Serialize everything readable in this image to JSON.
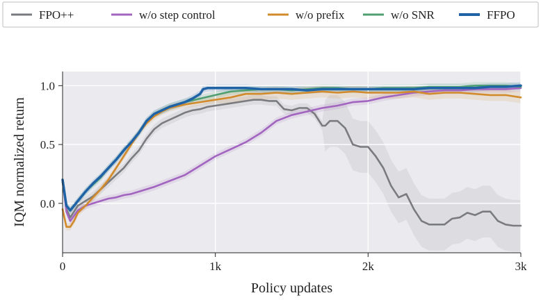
{
  "chart_data": {
    "type": "line",
    "title": "",
    "xlabel": "Policy updates",
    "ylabel": "IQM normalized return",
    "xlim": [
      0,
      3000
    ],
    "ylim": [
      -0.42,
      1.12
    ],
    "xticks": [
      0,
      1000,
      2000,
      3000
    ],
    "xtick_labels": [
      "0",
      "1k",
      "2k",
      "3k"
    ],
    "yticks": [
      0.0,
      0.5,
      1.0
    ],
    "ytick_labels": [
      "0.0",
      "0.5",
      "1.0"
    ],
    "grid": true,
    "legend_placement": "top, above plot, single row",
    "series": [
      {
        "name": "FPO++",
        "color": "#7a7b7f",
        "x": [
          0,
          25,
          50,
          100,
          150,
          200,
          250,
          300,
          350,
          400,
          450,
          500,
          550,
          600,
          650,
          700,
          750,
          800,
          850,
          900,
          950,
          1000,
          1100,
          1200,
          1250,
          1300,
          1350,
          1400,
          1450,
          1500,
          1550,
          1600,
          1650,
          1700,
          1720,
          1750,
          1800,
          1850,
          1900,
          1950,
          1970,
          2000,
          2050,
          2100,
          2150,
          2200,
          2250,
          2300,
          2350,
          2400,
          2450,
          2500,
          2550,
          2600,
          2650,
          2700,
          2750,
          2800,
          2850,
          2900,
          2950,
          3000
        ],
        "y": [
          0.18,
          -0.05,
          -0.12,
          -0.02,
          0.02,
          0.06,
          0.12,
          0.18,
          0.24,
          0.3,
          0.38,
          0.45,
          0.55,
          0.63,
          0.68,
          0.71,
          0.74,
          0.77,
          0.79,
          0.8,
          0.82,
          0.83,
          0.85,
          0.87,
          0.88,
          0.88,
          0.87,
          0.87,
          0.8,
          0.79,
          0.81,
          0.81,
          0.76,
          0.66,
          0.66,
          0.7,
          0.7,
          0.64,
          0.5,
          0.48,
          0.48,
          0.48,
          0.4,
          0.3,
          0.15,
          0.05,
          0.08,
          -0.05,
          -0.15,
          -0.18,
          -0.18,
          -0.18,
          -0.13,
          -0.12,
          -0.08,
          -0.1,
          -0.07,
          -0.07,
          -0.15,
          -0.18,
          -0.19,
          -0.19
        ]
      },
      {
        "name": "w/o step control",
        "color": "#a265bf",
        "x": [
          0,
          25,
          50,
          100,
          150,
          200,
          250,
          300,
          350,
          400,
          450,
          500,
          550,
          600,
          700,
          800,
          900,
          1000,
          1100,
          1200,
          1300,
          1400,
          1500,
          1600,
          1700,
          1800,
          1900,
          2000,
          2100,
          2200,
          2300,
          2400,
          2500,
          2600,
          2700,
          2800,
          2900,
          3000
        ],
        "y": [
          0.2,
          -0.07,
          -0.15,
          -0.06,
          -0.02,
          0.0,
          0.02,
          0.04,
          0.05,
          0.07,
          0.08,
          0.1,
          0.12,
          0.14,
          0.19,
          0.24,
          0.32,
          0.4,
          0.46,
          0.52,
          0.6,
          0.7,
          0.75,
          0.78,
          0.81,
          0.83,
          0.86,
          0.87,
          0.9,
          0.92,
          0.94,
          0.95,
          0.96,
          0.96,
          0.97,
          0.97,
          0.97,
          0.98
        ]
      },
      {
        "name": "w/o prefix",
        "color": "#d18a2c",
        "x": [
          0,
          25,
          50,
          75,
          100,
          150,
          200,
          250,
          300,
          350,
          400,
          450,
          500,
          550,
          600,
          650,
          700,
          800,
          900,
          1000,
          1100,
          1200,
          1300,
          1400,
          1500,
          1600,
          1700,
          1800,
          1900,
          2000,
          2100,
          2200,
          2300,
          2400,
          2500,
          2600,
          2700,
          2800,
          2900,
          3000
        ],
        "y": [
          -0.05,
          -0.2,
          -0.2,
          -0.15,
          -0.08,
          -0.02,
          0.05,
          0.12,
          0.2,
          0.3,
          0.4,
          0.5,
          0.6,
          0.68,
          0.74,
          0.78,
          0.81,
          0.84,
          0.86,
          0.88,
          0.9,
          0.93,
          0.93,
          0.94,
          0.93,
          0.94,
          0.95,
          0.94,
          0.95,
          0.94,
          0.94,
          0.94,
          0.95,
          0.93,
          0.94,
          0.94,
          0.93,
          0.92,
          0.92,
          0.9
        ]
      },
      {
        "name": "w/o SNR",
        "color": "#4f9f72",
        "x": [
          0,
          25,
          50,
          100,
          150,
          200,
          250,
          300,
          350,
          400,
          450,
          500,
          550,
          600,
          700,
          800,
          900,
          1000,
          1100,
          1200,
          1300,
          1400,
          1500,
          1600,
          1700,
          1800,
          1900,
          2000,
          2100,
          2200,
          2300,
          2400,
          2500,
          2600,
          2700,
          2800,
          2900,
          3000
        ],
        "y": [
          0.18,
          -0.02,
          -0.06,
          0.02,
          0.1,
          0.16,
          0.22,
          0.3,
          0.37,
          0.45,
          0.52,
          0.6,
          0.7,
          0.76,
          0.82,
          0.86,
          0.89,
          0.92,
          0.95,
          0.96,
          0.97,
          0.97,
          0.96,
          0.97,
          0.98,
          0.98,
          0.97,
          0.97,
          0.98,
          0.98,
          0.98,
          0.99,
          0.99,
          0.99,
          1.0,
          1.0,
          1.0,
          0.99
        ]
      },
      {
        "name": "FFPO",
        "color": "#1f63a6",
        "x": [
          0,
          25,
          50,
          100,
          150,
          200,
          250,
          300,
          350,
          400,
          450,
          500,
          550,
          600,
          700,
          800,
          850,
          900,
          920,
          950,
          1000,
          1100,
          1200,
          1300,
          1400,
          1500,
          1600,
          1700,
          1800,
          1900,
          2000,
          2100,
          2200,
          2300,
          2400,
          2500,
          2600,
          2700,
          2800,
          2900,
          3000
        ],
        "y": [
          0.2,
          -0.02,
          -0.06,
          0.02,
          0.1,
          0.17,
          0.23,
          0.3,
          0.37,
          0.45,
          0.52,
          0.6,
          0.7,
          0.76,
          0.82,
          0.86,
          0.89,
          0.93,
          0.97,
          0.98,
          0.98,
          0.98,
          0.98,
          0.97,
          0.97,
          0.97,
          0.96,
          0.97,
          0.97,
          0.97,
          0.97,
          0.97,
          0.97,
          0.97,
          0.98,
          0.98,
          0.98,
          0.98,
          0.99,
          0.99,
          1.0
        ]
      }
    ]
  }
}
